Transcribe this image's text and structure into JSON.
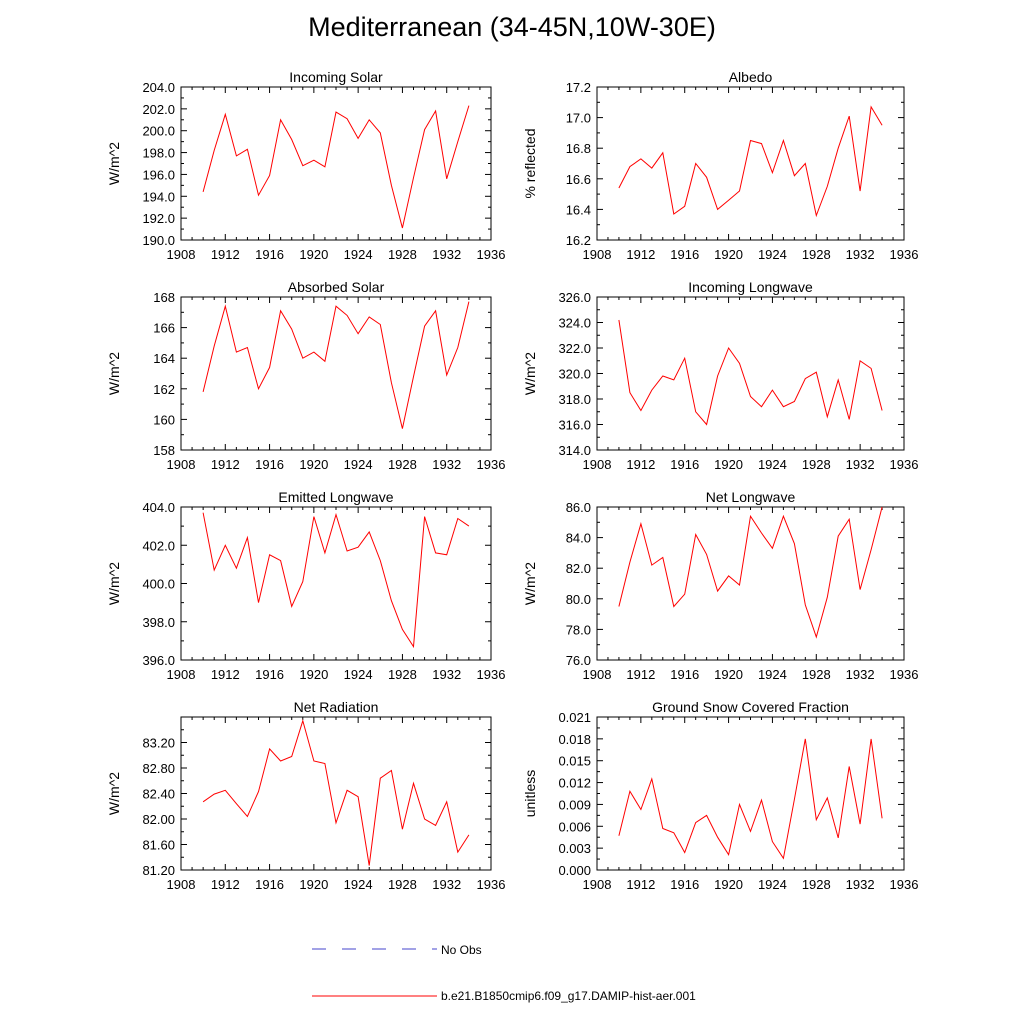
{
  "title": "Mediterranean (34-45N,10W-30E)",
  "legend": {
    "obs_label": "No Obs",
    "obs_color": "#4444cc",
    "model_label": "b.e21.B1850cmip6.f09_g17.DAMIP-hist-aer.001",
    "model_color": "#ff0000"
  },
  "chart_data": [
    {
      "type": "line",
      "title": "Incoming Solar",
      "ylabel": "W/m^2",
      "xlim": [
        1908,
        1936
      ],
      "ylim": [
        190,
        204
      ],
      "xticks": [
        "1908",
        "1912",
        "1916",
        "1920",
        "1924",
        "1928",
        "1932",
        "1936"
      ],
      "yticks": [
        "190.0",
        "192.0",
        "194.0",
        "196.0",
        "198.0",
        "200.0",
        "202.0",
        "204.0"
      ],
      "x": [
        1910,
        1911,
        1912,
        1913,
        1914,
        1915,
        1916,
        1917,
        1918,
        1919,
        1920,
        1921,
        1922,
        1923,
        1924,
        1925,
        1926,
        1927,
        1928,
        1929,
        1930,
        1931,
        1932,
        1933,
        1934
      ],
      "series": [
        {
          "values": [
            194.4,
            198.2,
            201.5,
            197.7,
            198.3,
            194.1,
            195.9,
            201.0,
            199.2,
            196.8,
            197.3,
            196.7,
            201.7,
            201.1,
            199.3,
            201.0,
            199.8,
            195.0,
            191.1,
            195.7,
            200.1,
            201.8,
            195.6,
            199.0,
            202.3
          ]
        }
      ]
    },
    {
      "type": "line",
      "title": "Albedo",
      "ylabel": "% reflected",
      "xlim": [
        1908,
        1936
      ],
      "ylim": [
        16.2,
        17.2
      ],
      "xticks": [
        "1908",
        "1912",
        "1916",
        "1920",
        "1924",
        "1928",
        "1932",
        "1936"
      ],
      "yticks": [
        "16.2",
        "16.4",
        "16.6",
        "16.8",
        "17.0",
        "17.2"
      ],
      "x": [
        1910,
        1911,
        1912,
        1913,
        1914,
        1915,
        1916,
        1917,
        1918,
        1919,
        1920,
        1921,
        1922,
        1923,
        1924,
        1925,
        1926,
        1927,
        1928,
        1929,
        1930,
        1931,
        1932,
        1933,
        1934
      ],
      "series": [
        {
          "values": [
            16.54,
            16.68,
            16.73,
            16.67,
            16.77,
            16.37,
            16.42,
            16.7,
            16.61,
            16.4,
            16.46,
            16.52,
            16.85,
            16.83,
            16.64,
            16.85,
            16.62,
            16.7,
            16.36,
            16.55,
            16.8,
            17.01,
            16.52,
            17.07,
            16.95
          ]
        }
      ]
    },
    {
      "type": "line",
      "title": "Absorbed Solar",
      "ylabel": "W/m^2",
      "xlim": [
        1908,
        1936
      ],
      "ylim": [
        158,
        168
      ],
      "xticks": [
        "1908",
        "1912",
        "1916",
        "1920",
        "1924",
        "1928",
        "1932",
        "1936"
      ],
      "yticks": [
        "158",
        "160",
        "162",
        "164",
        "166",
        "168"
      ],
      "x": [
        1910,
        1911,
        1912,
        1913,
        1914,
        1915,
        1916,
        1917,
        1918,
        1919,
        1920,
        1921,
        1922,
        1923,
        1924,
        1925,
        1926,
        1927,
        1928,
        1929,
        1930,
        1931,
        1932,
        1933,
        1934
      ],
      "series": [
        {
          "values": [
            161.8,
            164.8,
            167.4,
            164.4,
            164.7,
            162.0,
            163.4,
            167.1,
            165.9,
            164.0,
            164.4,
            163.8,
            167.4,
            166.8,
            165.6,
            166.7,
            166.2,
            162.4,
            159.4,
            162.8,
            166.1,
            167.1,
            162.9,
            164.7,
            167.7
          ]
        }
      ]
    },
    {
      "type": "line",
      "title": "Incoming Longwave",
      "ylabel": "W/m^2",
      "xlim": [
        1908,
        1936
      ],
      "ylim": [
        314,
        326
      ],
      "xticks": [
        "1908",
        "1912",
        "1916",
        "1920",
        "1924",
        "1928",
        "1932",
        "1936"
      ],
      "yticks": [
        "314.0",
        "316.0",
        "318.0",
        "320.0",
        "322.0",
        "324.0",
        "326.0"
      ],
      "x": [
        1910,
        1911,
        1912,
        1913,
        1914,
        1915,
        1916,
        1917,
        1918,
        1919,
        1920,
        1921,
        1922,
        1923,
        1924,
        1925,
        1926,
        1927,
        1928,
        1929,
        1930,
        1931,
        1932,
        1933,
        1934
      ],
      "series": [
        {
          "values": [
            324.2,
            318.5,
            317.1,
            318.7,
            319.8,
            319.5,
            321.2,
            317.0,
            316.0,
            319.8,
            322.0,
            320.8,
            318.2,
            317.4,
            318.7,
            317.4,
            317.8,
            319.6,
            320.1,
            316.6,
            319.5,
            316.4,
            321.0,
            320.4,
            317.1
          ]
        }
      ]
    },
    {
      "type": "line",
      "title": "Emitted Longwave",
      "ylabel": "W/m^2",
      "xlim": [
        1908,
        1936
      ],
      "ylim": [
        396,
        404
      ],
      "xticks": [
        "1908",
        "1912",
        "1916",
        "1920",
        "1924",
        "1928",
        "1932",
        "1936"
      ],
      "yticks": [
        "396.0",
        "398.0",
        "400.0",
        "402.0",
        "404.0"
      ],
      "x": [
        1910,
        1911,
        1912,
        1913,
        1914,
        1915,
        1916,
        1917,
        1918,
        1919,
        1920,
        1921,
        1922,
        1923,
        1924,
        1925,
        1926,
        1927,
        1928,
        1929,
        1930,
        1931,
        1932,
        1933,
        1934
      ],
      "series": [
        {
          "values": [
            403.7,
            400.7,
            402.0,
            400.8,
            402.4,
            399.0,
            401.5,
            401.2,
            398.8,
            400.1,
            403.5,
            401.6,
            403.6,
            401.7,
            401.9,
            402.7,
            401.2,
            399.1,
            397.6,
            396.7,
            403.5,
            401.6,
            401.5,
            403.4,
            403.0
          ]
        }
      ]
    },
    {
      "type": "line",
      "title": "Net Longwave",
      "ylabel": "W/m^2",
      "xlim": [
        1908,
        1936
      ],
      "ylim": [
        76,
        86
      ],
      "xticks": [
        "1908",
        "1912",
        "1916",
        "1920",
        "1924",
        "1928",
        "1932",
        "1936"
      ],
      "yticks": [
        "76.0",
        "78.0",
        "80.0",
        "82.0",
        "84.0",
        "86.0"
      ],
      "x": [
        1910,
        1911,
        1912,
        1913,
        1914,
        1915,
        1916,
        1917,
        1918,
        1919,
        1920,
        1921,
        1922,
        1923,
        1924,
        1925,
        1926,
        1927,
        1928,
        1929,
        1930,
        1931,
        1932,
        1933,
        1934
      ],
      "series": [
        {
          "values": [
            79.5,
            82.4,
            84.9,
            82.2,
            82.7,
            79.5,
            80.3,
            84.2,
            82.9,
            80.5,
            81.5,
            80.9,
            85.4,
            84.3,
            83.3,
            85.4,
            83.6,
            79.6,
            77.5,
            80.1,
            84.1,
            85.2,
            80.6,
            83.2,
            86.0
          ]
        }
      ]
    },
    {
      "type": "line",
      "title": "Net Radiation",
      "ylabel": "W/m^2",
      "xlim": [
        1908,
        1936
      ],
      "ylim": [
        81.2,
        83.6
      ],
      "xticks": [
        "1908",
        "1912",
        "1916",
        "1920",
        "1924",
        "1928",
        "1932",
        "1936"
      ],
      "yticks": [
        "81.20",
        "81.60",
        "82.00",
        "82.40",
        "82.80",
        "83.20"
      ],
      "x": [
        1910,
        1911,
        1912,
        1913,
        1914,
        1915,
        1916,
        1917,
        1918,
        1919,
        1920,
        1921,
        1922,
        1923,
        1924,
        1925,
        1926,
        1927,
        1928,
        1929,
        1930,
        1931,
        1932,
        1933,
        1934
      ],
      "series": [
        {
          "values": [
            82.27,
            82.39,
            82.45,
            82.24,
            82.04,
            82.43,
            83.1,
            82.91,
            82.98,
            83.54,
            82.91,
            82.87,
            81.94,
            82.45,
            82.35,
            81.27,
            82.64,
            82.76,
            81.84,
            82.56,
            82.0,
            81.9,
            82.27,
            81.48,
            81.75
          ]
        }
      ]
    },
    {
      "type": "line",
      "title": "Ground Snow Covered Fraction",
      "ylabel": "unitless",
      "xlim": [
        1908,
        1936
      ],
      "ylim": [
        0,
        0.021
      ],
      "xticks": [
        "1908",
        "1912",
        "1916",
        "1920",
        "1924",
        "1928",
        "1932",
        "1936"
      ],
      "yticks": [
        "0.000",
        "0.003",
        "0.006",
        "0.009",
        "0.012",
        "0.015",
        "0.018",
        "0.021"
      ],
      "x": [
        1910,
        1911,
        1912,
        1913,
        1914,
        1915,
        1916,
        1917,
        1918,
        1919,
        1920,
        1921,
        1922,
        1923,
        1924,
        1925,
        1926,
        1927,
        1928,
        1929,
        1930,
        1931,
        1932,
        1933,
        1934
      ],
      "series": [
        {
          "values": [
            0.0047,
            0.0108,
            0.0083,
            0.0125,
            0.0057,
            0.0051,
            0.0024,
            0.0065,
            0.0075,
            0.0045,
            0.0021,
            0.009,
            0.0053,
            0.0096,
            0.0039,
            0.0016,
            0.0097,
            0.018,
            0.0069,
            0.0099,
            0.0044,
            0.0142,
            0.0063,
            0.018,
            0.0071
          ]
        }
      ]
    }
  ]
}
